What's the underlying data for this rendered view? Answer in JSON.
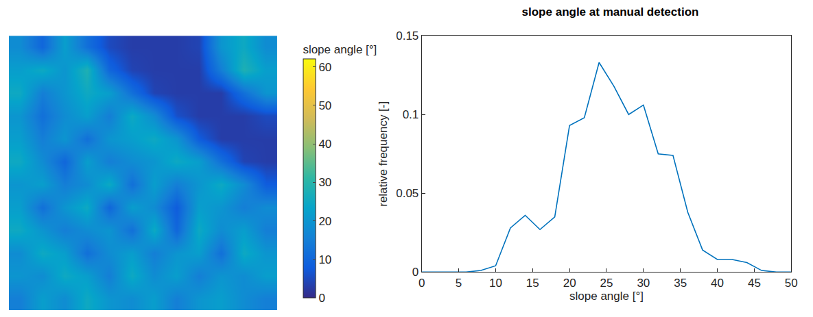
{
  "chart_data": [
    {
      "type": "heatmap",
      "tick_labels": false,
      "cells": [
        [
          18,
          10,
          22,
          12,
          5,
          3,
          3,
          3,
          4,
          20,
          25,
          18
        ],
        [
          22,
          25,
          20,
          28,
          10,
          4,
          3,
          3,
          3,
          15,
          28,
          22
        ],
        [
          25,
          15,
          20,
          25,
          22,
          12,
          4,
          3,
          3,
          3,
          12,
          20
        ],
        [
          20,
          12,
          18,
          22,
          15,
          25,
          18,
          6,
          3,
          3,
          3,
          5
        ],
        [
          22,
          15,
          20,
          12,
          20,
          22,
          25,
          20,
          8,
          3,
          3,
          3
        ],
        [
          25,
          18,
          10,
          22,
          15,
          18,
          20,
          25,
          22,
          12,
          4,
          3
        ],
        [
          20,
          22,
          15,
          18,
          25,
          12,
          22,
          15,
          20,
          25,
          18,
          8
        ],
        [
          22,
          12,
          20,
          25,
          10,
          22,
          18,
          8,
          22,
          20,
          15,
          18
        ],
        [
          25,
          20,
          15,
          18,
          20,
          12,
          25,
          10,
          25,
          18,
          22,
          15
        ],
        [
          18,
          25,
          22,
          12,
          18,
          22,
          15,
          20,
          22,
          12,
          25,
          20
        ],
        [
          20,
          18,
          25,
          22,
          15,
          25,
          18,
          22,
          15,
          20,
          18,
          22
        ],
        [
          15,
          22,
          18,
          25,
          20,
          18,
          22,
          15,
          20,
          22,
          18,
          15
        ]
      ],
      "colorbar": {
        "title": "slope angle [°]",
        "range": [
          0,
          62
        ],
        "ticks": [
          0,
          10,
          20,
          30,
          40,
          50,
          60
        ]
      }
    },
    {
      "type": "line",
      "title": "slope angle at manual detection",
      "x_label": "slope angle [°]",
      "y_label": "relative frequency [-]",
      "x": [
        0,
        2,
        4,
        6,
        8,
        10,
        12,
        14,
        16,
        18,
        20,
        22,
        24,
        26,
        28,
        30,
        32,
        34,
        36,
        38,
        40,
        42,
        44,
        46,
        48,
        50
      ],
      "values": [
        0,
        0,
        0,
        0,
        0.001,
        0.004,
        0.028,
        0.036,
        0.027,
        0.035,
        0.093,
        0.098,
        0.133,
        0.118,
        0.1,
        0.106,
        0.075,
        0.074,
        0.038,
        0.014,
        0.008,
        0.008,
        0.006,
        0.001,
        0,
        0
      ],
      "color": "#0072bd",
      "xlim": [
        0,
        50
      ],
      "xticks": [
        0,
        5,
        10,
        15,
        20,
        25,
        30,
        35,
        40,
        45,
        50
      ],
      "ylim": [
        0,
        0.15
      ],
      "yticks": [
        0,
        0.05,
        0.1,
        0.15
      ],
      "grid": false
    }
  ]
}
